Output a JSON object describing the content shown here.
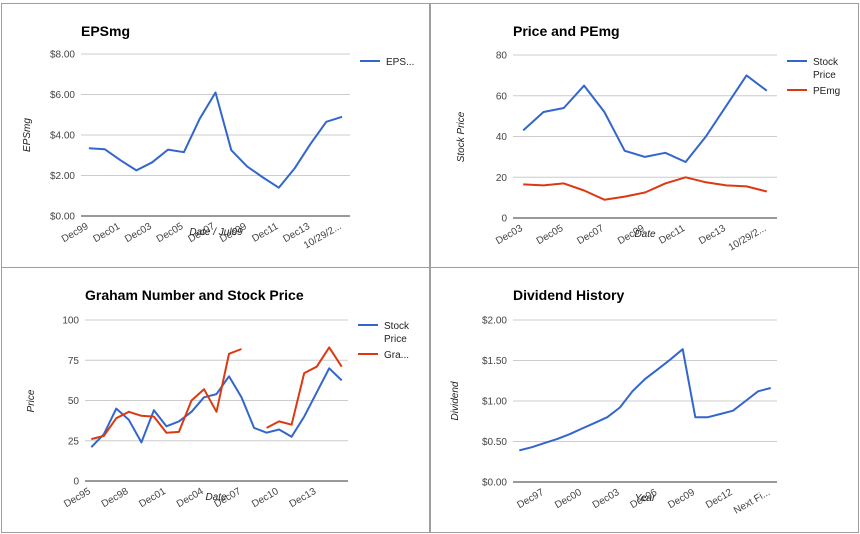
{
  "chart_data": [
    {
      "type": "line",
      "title": "EPSmg",
      "xlabel": "Date / Jul99",
      "ylabel": "EPSmg",
      "ylim": [
        0,
        8
      ],
      "yticks": [
        "$0.00",
        "$2.00",
        "$4.00",
        "$6.00",
        "$8.00"
      ],
      "categories": [
        "Dec99",
        "Dec00",
        "Dec01",
        "Dec02",
        "Dec03",
        "Dec04",
        "Dec05",
        "Dec06",
        "Dec07",
        "Dec08",
        "Dec09",
        "Dec10",
        "Dec11",
        "Dec12",
        "Dec13",
        "Dec14",
        "10/29/2..."
      ],
      "xtick_labels": [
        "Dec99",
        "Dec01",
        "Dec03",
        "Dec05",
        "Dec07",
        "Dec09",
        "Dec11",
        "Dec13",
        "10/29/2..."
      ],
      "legend_position": "right",
      "grid": true,
      "series": [
        {
          "name": "EPS...",
          "color": "#3366cc",
          "values": [
            3.35,
            3.3,
            2.75,
            2.25,
            2.65,
            3.28,
            3.15,
            4.8,
            6.1,
            3.25,
            2.45,
            1.9,
            1.4,
            2.35,
            3.55,
            4.65,
            4.9
          ]
        }
      ]
    },
    {
      "type": "line",
      "title": "Price and PEmg",
      "xlabel": "Date",
      "ylabel": "Stock Price",
      "ylim": [
        0,
        80
      ],
      "yticks": [
        "0",
        "20",
        "40",
        "60",
        "80"
      ],
      "categories": [
        "Dec03",
        "Dec04",
        "Dec05",
        "Dec06",
        "Dec07",
        "Dec08",
        "Dec09",
        "Dec10",
        "Dec11",
        "Dec12",
        "Dec13",
        "Dec14",
        "10/29/2..."
      ],
      "xtick_labels": [
        "Dec03",
        "Dec05",
        "Dec07",
        "Dec09",
        "Dec11",
        "Dec13",
        "10/29/2..."
      ],
      "legend_position": "right",
      "grid": true,
      "series": [
        {
          "name": "Stock Price",
          "legend_lines": [
            "Stock",
            "Price"
          ],
          "color": "#3366cc",
          "values": [
            43,
            52,
            54,
            65,
            52,
            33,
            30,
            32,
            27.5,
            40,
            55,
            70,
            62.5
          ]
        },
        {
          "name": "PEmg",
          "legend_lines": [
            "PEmg"
          ],
          "color": "#dc3912",
          "values": [
            16.5,
            16,
            17,
            13.5,
            9,
            10.5,
            12.5,
            17,
            20,
            17.5,
            16,
            15.5,
            13
          ]
        }
      ]
    },
    {
      "type": "line",
      "title": "Graham Number and Stock Price",
      "xlabel": "Date",
      "ylabel": "Price",
      "ylim": [
        0,
        100
      ],
      "yticks": [
        "0",
        "25",
        "50",
        "75",
        "100"
      ],
      "categories": [
        "Dec95",
        "Dec96",
        "Dec97",
        "Dec98",
        "Dec99",
        "Dec00",
        "Dec01",
        "Dec02",
        "Dec03",
        "Dec04",
        "Dec05",
        "Dec06",
        "Dec07",
        "Dec08",
        "Dec09",
        "Dec10",
        "Dec11",
        "Dec12",
        "Dec13",
        "Dec14",
        "10/29/2..."
      ],
      "xtick_labels": [
        "Dec95",
        "Dec98",
        "Dec01",
        "Dec04",
        "Dec07",
        "Dec10",
        "Dec13"
      ],
      "legend_position": "right",
      "grid": true,
      "series": [
        {
          "name": "Stock Price",
          "legend_lines": [
            "Stock",
            "Price"
          ],
          "color": "#3366cc",
          "values": [
            21,
            29,
            45,
            38,
            24,
            44,
            34,
            37,
            43,
            52,
            54,
            65,
            52,
            33,
            30,
            32,
            27.5,
            40,
            55,
            70,
            62.5
          ]
        },
        {
          "name": "Gra...",
          "legend_lines": [
            "Gra..."
          ],
          "color": "#dc3912",
          "values": [
            26,
            28,
            39,
            43,
            40.5,
            40,
            30,
            30.5,
            50,
            57,
            43,
            79,
            82,
            null,
            33,
            37,
            35,
            67,
            71,
            83,
            71
          ]
        }
      ]
    },
    {
      "type": "line",
      "title": "Dividend History",
      "xlabel": "Year",
      "ylabel": "Dividend",
      "ylim": [
        0,
        2
      ],
      "yticks": [
        "$0.00",
        "$0.50",
        "$1.00",
        "$1.50",
        "$2.00"
      ],
      "categories": [
        "Dec95",
        "Dec96",
        "Dec97",
        "Dec98",
        "Dec99",
        "Dec00",
        "Dec01",
        "Dec02",
        "Dec03",
        "Dec04",
        "Dec05",
        "Dec06",
        "Dec07",
        "Dec08",
        "Dec09",
        "Dec10",
        "Dec11",
        "Dec12",
        "Dec13",
        "Dec14",
        "Next Fi..."
      ],
      "xtick_labels": [
        "Dec97",
        "Dec00",
        "Dec03",
        "Dec06",
        "Dec09",
        "Dec12",
        "Next Fi..."
      ],
      "tick_indices": [
        2,
        5,
        8,
        11,
        14,
        17,
        20
      ],
      "legend_position": "none",
      "grid": true,
      "series": [
        {
          "name": "Dividend",
          "color": "#3366cc",
          "values": [
            0.39,
            0.43,
            0.48,
            0.53,
            0.59,
            0.66,
            0.73,
            0.8,
            0.92,
            1.12,
            1.27,
            1.39,
            1.51,
            1.64,
            0.8,
            0.8,
            0.84,
            0.88,
            1.0,
            1.12,
            1.16
          ]
        }
      ]
    }
  ]
}
